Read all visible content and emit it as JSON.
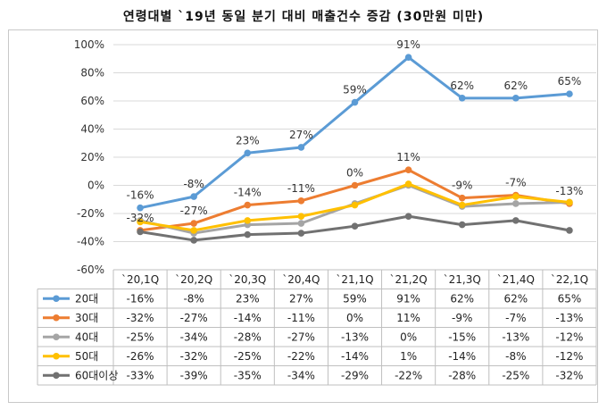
{
  "chart_data": {
    "type": "line",
    "title": "연령대별 `19년 동일 분기 대비 매출건수 증감 (30만원 미만)",
    "categories": [
      "`20,1Q",
      "`20,2Q",
      "`20,3Q",
      "`20,4Q",
      "`21,1Q",
      "`21,2Q",
      "`21,3Q",
      "`21,4Q",
      "`22,1Q"
    ],
    "ylim": [
      -60,
      100
    ],
    "yticks": [
      -60,
      -40,
      -20,
      0,
      20,
      40,
      60,
      80,
      100
    ],
    "ytick_labels": [
      "-60%",
      "-40%",
      "-20%",
      "0%",
      "20%",
      "40%",
      "60%",
      "80%",
      "100%"
    ],
    "grid": true,
    "legend": "data-table",
    "series": [
      {
        "name": "20대",
        "color": "#5B9BD5",
        "values": [
          -16,
          -8,
          23,
          27,
          59,
          91,
          62,
          62,
          65
        ],
        "labels": [
          "-16%",
          "-8%",
          "23%",
          "27%",
          "59%",
          "91%",
          "62%",
          "62%",
          "65%"
        ],
        "show_labels": true
      },
      {
        "name": "30대",
        "color": "#ED7D31",
        "values": [
          -32,
          -27,
          -14,
          -11,
          0,
          11,
          -9,
          -7,
          -13
        ],
        "labels": [
          "-32%",
          "-27%",
          "-14%",
          "-11%",
          "0%",
          "11%",
          "-9%",
          "-7%",
          "-13%"
        ],
        "show_labels": true
      },
      {
        "name": "40대",
        "color": "#A5A5A5",
        "values": [
          -25,
          -34,
          -28,
          -27,
          -13,
          0,
          -15,
          -13,
          -12
        ],
        "labels": [
          "-25%",
          "-34%",
          "-28%",
          "-27%",
          "-13%",
          "0%",
          "-15%",
          "-13%",
          "-12%"
        ],
        "show_labels": false
      },
      {
        "name": "50대",
        "color": "#FFC000",
        "values": [
          -26,
          -32,
          -25,
          -22,
          -14,
          1,
          -14,
          -8,
          -12
        ],
        "labels": [
          "-26%",
          "-32%",
          "-25%",
          "-22%",
          "-14%",
          "1%",
          "-14%",
          "-8%",
          "-12%"
        ],
        "show_labels": false
      },
      {
        "name": "60대이상",
        "color": "#717171",
        "values": [
          -33,
          -39,
          -35,
          -34,
          -29,
          -22,
          -28,
          -25,
          -32
        ],
        "labels": [
          "-33%",
          "-39%",
          "-35%",
          "-34%",
          "-29%",
          "-22%",
          "-28%",
          "-25%",
          "-32%"
        ],
        "show_labels": false
      }
    ]
  }
}
